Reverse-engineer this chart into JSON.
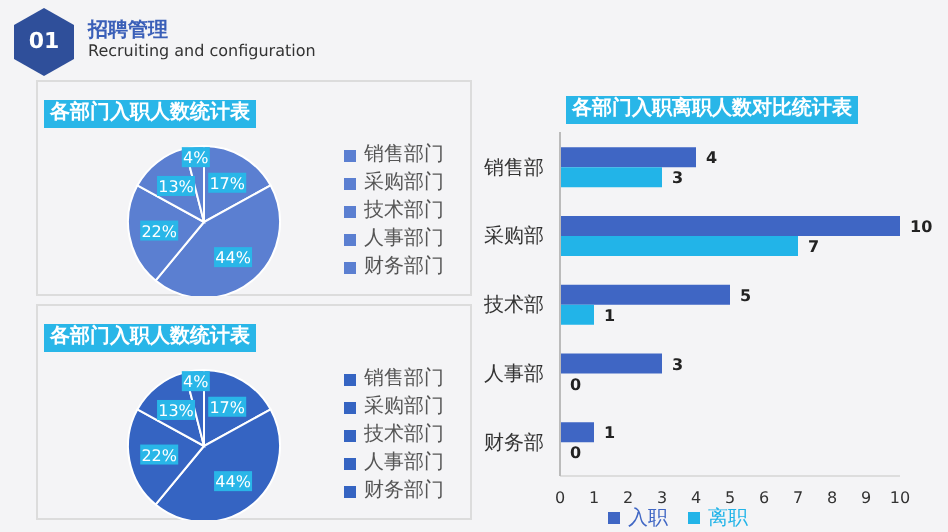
{
  "chart_data": [
    {
      "type": "pie",
      "title": "各部门入职人数统计表",
      "annotations": [
        "01",
        "招聘管理",
        "Recruiting and configuration"
      ],
      "categories": [
        "销售部门",
        "采购部门",
        "技术部门",
        "人事部门",
        "财务部门"
      ],
      "values": [
        17,
        44,
        22,
        13,
        4
      ],
      "value_labels": [
        "17%",
        "44%",
        "22%",
        "13%",
        "4%"
      ],
      "colors": [
        "#5b7fd1",
        "#5b7fd1",
        "#5b7fd1",
        "#5b7fd1",
        "#5b7fd1"
      ],
      "legend": "right"
    },
    {
      "type": "pie",
      "title": "各部门入职人数统计表",
      "categories": [
        "销售部门",
        "采购部门",
        "技术部门",
        "人事部门",
        "财务部门"
      ],
      "values": [
        17,
        44,
        22,
        13,
        4
      ],
      "value_labels": [
        "17%",
        "44%",
        "22%",
        "13%",
        "4%"
      ],
      "colors": [
        "#3564c2",
        "#3564c2",
        "#3564c2",
        "#3564c2",
        "#3564c2"
      ],
      "legend": "right"
    },
    {
      "type": "bar",
      "orientation": "horizontal",
      "title": "各部门入职离职人数对比统计表",
      "categories": [
        "销售部",
        "采购部",
        "技术部",
        "人事部",
        "财务部"
      ],
      "series": [
        {
          "name": "入职",
          "color": "#3f66c4",
          "values": [
            4,
            10,
            5,
            3,
            1
          ]
        },
        {
          "name": "离职",
          "color": "#22b4e8",
          "values": [
            3,
            7,
            1,
            0,
            0
          ]
        }
      ],
      "xlim": [
        0,
        10
      ],
      "xticks": [
        0,
        1,
        2,
        3,
        4,
        5,
        6,
        7,
        8,
        9,
        10
      ],
      "data_labels": true,
      "legend": "bottom"
    }
  ]
}
